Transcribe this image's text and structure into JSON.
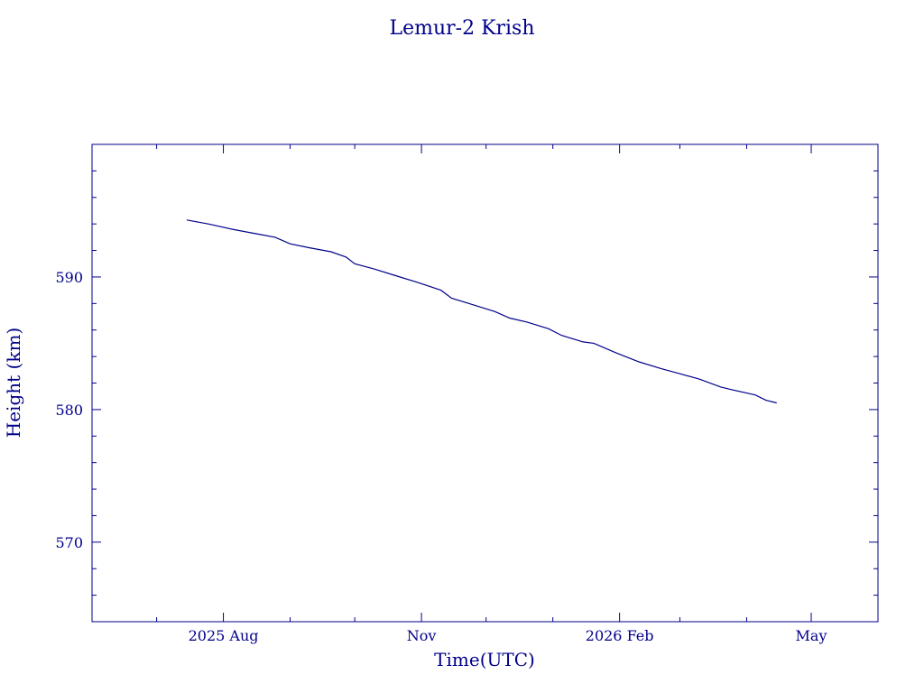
{
  "chart_data": {
    "type": "line",
    "title": "Lemur-2 Krish",
    "xlabel": "Time(UTC)",
    "ylabel": "Height (km)",
    "x_tick_labels": [
      {
        "date": "2025-08-01",
        "label": "2025 Aug"
      },
      {
        "date": "2025-11-01",
        "label": "Nov"
      },
      {
        "date": "2026-02-01",
        "label": "2026 Feb"
      },
      {
        "date": "2026-05-01",
        "label": "May"
      }
    ],
    "y_tick_labels": [
      {
        "value": 570,
        "label": "570"
      },
      {
        "value": 580,
        "label": "580"
      },
      {
        "value": 590,
        "label": "590"
      }
    ],
    "xlim": [
      "2025-06-01",
      "2026-06-01"
    ],
    "ylim": [
      564,
      600
    ],
    "grid": false,
    "color": "#00008b",
    "series": [
      {
        "x": [
          "2025-07-15",
          "2025-07-25",
          "2025-08-05",
          "2025-08-15",
          "2025-08-25",
          "2025-09-01",
          "2025-09-10",
          "2025-09-20",
          "2025-09-27",
          "2025-10-01",
          "2025-10-10",
          "2025-10-20",
          "2025-10-30",
          "2025-11-10",
          "2025-11-15",
          "2025-11-25",
          "2025-12-05",
          "2025-12-12",
          "2025-12-20",
          "2025-12-30",
          "2026-01-05",
          "2026-01-15",
          "2026-01-20",
          "2026-01-30",
          "2026-02-10",
          "2026-02-20",
          "2026-03-01",
          "2026-03-10",
          "2026-03-20",
          "2026-03-25",
          "2026-04-05",
          "2026-04-10",
          "2026-04-15"
        ],
        "y": [
          594.3,
          594.0,
          593.6,
          593.3,
          593.0,
          592.5,
          592.2,
          591.9,
          591.5,
          591.0,
          590.6,
          590.1,
          589.6,
          589.0,
          588.4,
          587.9,
          587.4,
          586.9,
          586.6,
          586.1,
          585.6,
          585.1,
          585.0,
          584.3,
          583.6,
          583.1,
          582.7,
          582.3,
          581.7,
          581.5,
          581.1,
          580.7,
          580.5
        ]
      }
    ]
  }
}
